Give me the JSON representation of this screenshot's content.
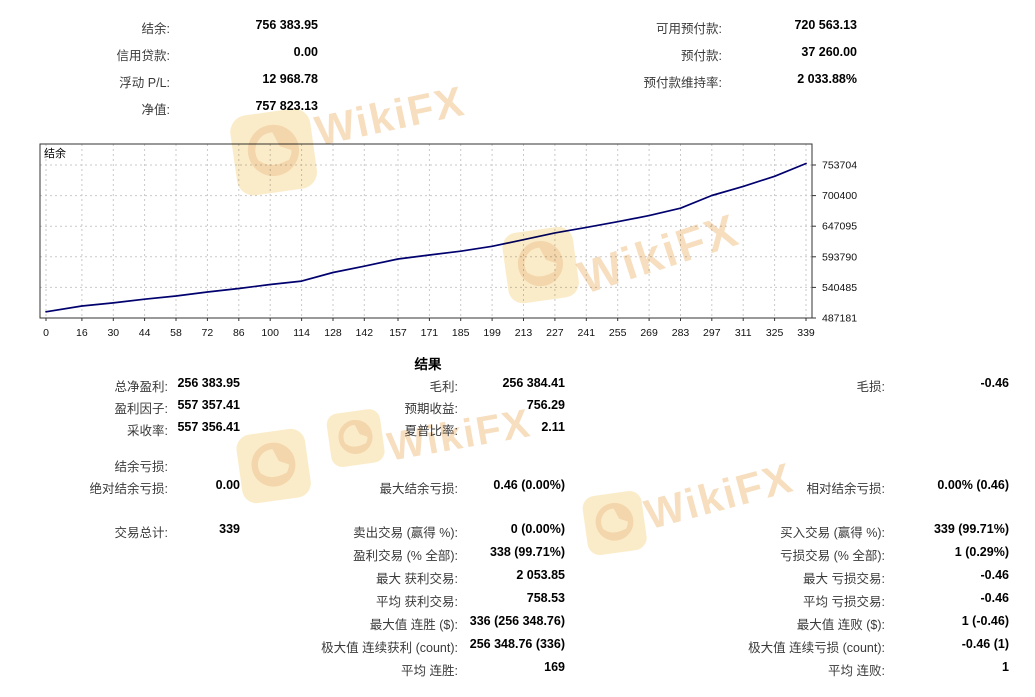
{
  "account_summary": {
    "left": [
      {
        "label": "结余:",
        "value": "756 383.95"
      },
      {
        "label": "信用贷款:",
        "value": "0.00"
      },
      {
        "label": "浮动 P/L:",
        "value": "12 968.78"
      },
      {
        "label": "净值:",
        "value": "757 823.13"
      }
    ],
    "right": [
      {
        "label": "可用预付款:",
        "value": "720 563.13"
      },
      {
        "label": "预付款:",
        "value": "37 260.00"
      },
      {
        "label": "预付款维持率:",
        "value": "2 033.88%"
      }
    ]
  },
  "chart_data": {
    "type": "line",
    "title": "",
    "legend": "结余",
    "legend_position": "top-left",
    "grid": true,
    "line_color": "#00006e",
    "xlim": [
      0,
      339
    ],
    "ylim": [
      487181,
      790000
    ],
    "x_ticks": [
      0,
      16,
      30,
      44,
      58,
      72,
      86,
      100,
      114,
      128,
      142,
      157,
      171,
      185,
      199,
      213,
      227,
      241,
      255,
      269,
      283,
      297,
      311,
      325,
      339
    ],
    "y_ticks": [
      753704,
      700400,
      647095,
      593790,
      540485,
      487181
    ],
    "series": [
      {
        "name": "结余",
        "x": [
          0,
          16,
          30,
          44,
          58,
          72,
          86,
          100,
          114,
          128,
          142,
          157,
          171,
          185,
          199,
          213,
          227,
          241,
          255,
          269,
          283,
          297,
          311,
          325,
          339
        ],
        "values": [
          498000,
          508000,
          513500,
          520000,
          525500,
          532500,
          538500,
          545500,
          551500,
          566500,
          577500,
          590000,
          597000,
          603500,
          612000,
          623500,
          635500,
          645000,
          655000,
          665500,
          678500,
          700500,
          716500,
          734000,
          756384
        ]
      }
    ]
  },
  "results": {
    "title": "结果",
    "sections": [
      {
        "rows": [
          {
            "cells": [
              {
                "col": 0,
                "label": "总净盈利:",
                "value": "256 383.95"
              },
              {
                "col": 1,
                "label": "毛利:",
                "value": "256 384.41"
              },
              {
                "col": 2,
                "label": "毛损:",
                "value": "-0.46"
              }
            ]
          },
          {
            "cells": [
              {
                "col": 0,
                "label": "盈利因子:",
                "value": "557 357.41"
              },
              {
                "col": 1,
                "label": "预期收益:",
                "value": "756.29"
              }
            ]
          },
          {
            "cells": [
              {
                "col": 0,
                "label": "采收率:",
                "value": "557 356.41"
              },
              {
                "col": 1,
                "label": "夏普比率:",
                "value": "2.11"
              }
            ]
          }
        ]
      },
      {
        "rows": [
          {
            "cells": [
              {
                "col": 0,
                "label": "结余亏损:",
                "value": ""
              }
            ]
          },
          {
            "cells": [
              {
                "col": 0,
                "label": "绝对结余亏损:",
                "value": "0.00"
              },
              {
                "col": 1,
                "label": "最大结余亏损:",
                "value": "0.46 (0.00%)"
              },
              {
                "col": 2,
                "label": "相对结余亏损:",
                "value": "0.00% (0.46)"
              }
            ]
          }
        ]
      },
      {
        "rows": [
          {
            "cells": [
              {
                "col": 0,
                "label": "交易总计:",
                "value": "339"
              },
              {
                "col": 1,
                "label": "卖出交易 (赢得 %):",
                "value": "0 (0.00%)"
              },
              {
                "col": 2,
                "label": "买入交易 (赢得 %):",
                "value": "339 (99.71%)"
              }
            ]
          },
          {
            "cells": [
              {
                "col": 1,
                "label": "盈利交易 (% 全部):",
                "value": "338 (99.71%)"
              },
              {
                "col": 2,
                "label": "亏损交易 (% 全部):",
                "value": "1 (0.29%)"
              }
            ]
          },
          {
            "cells": [
              {
                "col": 1,
                "label": "最大 获利交易:",
                "value": "2 053.85"
              },
              {
                "col": 2,
                "label": "最大 亏损交易:",
                "value": "-0.46"
              }
            ]
          },
          {
            "cells": [
              {
                "col": 1,
                "label": "平均 获利交易:",
                "value": "758.53"
              },
              {
                "col": 2,
                "label": "平均 亏损交易:",
                "value": "-0.46"
              }
            ]
          },
          {
            "cells": [
              {
                "col": 1,
                "label": "最大值 连胜 ($):",
                "value": "336 (256 348.76)"
              },
              {
                "col": 2,
                "label": "最大值 连败 ($):",
                "value": "1 (-0.46)"
              }
            ]
          },
          {
            "cells": [
              {
                "col": 1,
                "label": "极大值 连续获利 (count):",
                "value": "256 348.76 (336)"
              },
              {
                "col": 2,
                "label": "极大值 连续亏损 (count):",
                "value": "-0.46 (1)"
              }
            ]
          },
          {
            "cells": [
              {
                "col": 1,
                "label": "平均 连胜:",
                "value": "169"
              },
              {
                "col": 2,
                "label": "平均 连败:",
                "value": "1"
              }
            ]
          }
        ]
      }
    ]
  },
  "watermark": {
    "text": "WikiFX"
  }
}
